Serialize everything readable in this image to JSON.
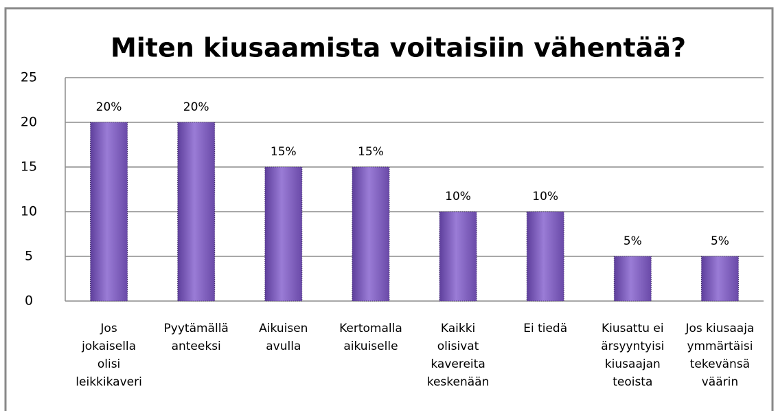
{
  "chart_data": {
    "type": "bar",
    "title": "Miten kiusaamista voitaisiin vähentää?",
    "categories": [
      "Jos\njokaisella\nolisi\nleikkikaveri",
      "Pyytämällä\nanteeksi",
      "Aikuisen\navulla",
      "Kertomalla\naikuiselle",
      "Kaikki\nolisivat\nkavereita\nkeskenään",
      "Ei tiedä",
      "Kiusattu ei\närsyyntyisi\nkiusaajan\nteoista",
      "Jos kiusaaja\nymmärtäisi\ntekevänsä\nväärin"
    ],
    "values": [
      20,
      20,
      15,
      15,
      10,
      10,
      5,
      5
    ],
    "value_labels": [
      "20%",
      "20%",
      "15%",
      "15%",
      "10%",
      "10%",
      "5%",
      "5%"
    ],
    "color": "#8a6cc8",
    "ylim": [
      0,
      25
    ],
    "yticks": [
      0,
      5,
      10,
      15,
      20,
      25
    ],
    "grid": true
  }
}
